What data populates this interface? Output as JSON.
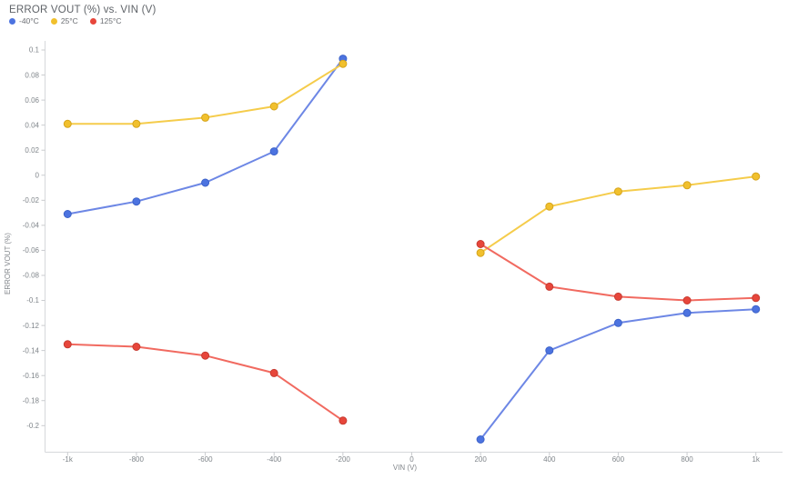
{
  "header": {
    "title": "ERROR VOUT (%) vs. VIN (V)"
  },
  "legend": {
    "position": "top-left",
    "items": [
      {
        "label": "-40°C",
        "color": "#4C73E0"
      },
      {
        "label": "25°C",
        "color": "#F1C02D"
      },
      {
        "label": "125°C",
        "color": "#E7463B"
      }
    ]
  },
  "chart_data": {
    "type": "line",
    "title": "ERROR VOUT (%) vs. VIN (V)",
    "xlabel": "VIN (V)",
    "ylabel": "ERROR VOUT (%)",
    "grid": false,
    "legend_position": "top-left",
    "x_domain": [
      -1000,
      1000
    ],
    "y_domain": [
      0.1,
      -0.2
    ],
    "xlim": [
      -1070,
      1080
    ],
    "ylim": [
      -0.222,
      0.103
    ],
    "x_ticks": {
      "values": [
        -1000,
        -800,
        -600,
        -400,
        -200,
        0,
        200,
        400,
        600,
        800,
        1000
      ],
      "labels": [
        "-1k",
        "-800",
        "-600",
        "-400",
        "-200",
        "0",
        "200",
        "400",
        "600",
        "800",
        "1k"
      ]
    },
    "y_ticks": {
      "values": [
        0.1,
        0.08,
        0.06,
        0.04,
        0.02,
        0,
        -0.02,
        -0.04,
        -0.06,
        -0.08,
        -0.1,
        -0.12,
        -0.14,
        -0.16,
        -0.18,
        -0.2
      ],
      "labels": [
        "0.1",
        "0.08",
        "0.06",
        "0.04",
        "0.02",
        "0",
        "-0.02",
        "-0.04",
        "-0.06",
        "-0.08",
        "-0.1",
        "-0.12",
        "-0.14",
        "-0.16",
        "-0.18",
        "-0.2"
      ]
    },
    "series_break_index": 5,
    "series": [
      {
        "name": "-40°C",
        "line_color": "#6D87E5",
        "point_color": "#4C73E0",
        "point_stroke": "#3D63C9",
        "x": [
          -1000,
          -800,
          -600,
          -400,
          -200,
          200,
          400,
          600,
          800,
          1000
        ],
        "y": [
          -0.031,
          -0.021,
          -0.006,
          0.019,
          0.093,
          -0.211,
          -0.14,
          -0.118,
          -0.11,
          -0.107
        ]
      },
      {
        "name": "25°C",
        "line_color": "#F5CC4B",
        "point_color": "#F1C02D",
        "point_stroke": "#D6A51C",
        "x": [
          -1000,
          -800,
          -600,
          -400,
          -200,
          200,
          400,
          600,
          800,
          1000
        ],
        "y": [
          0.041,
          0.041,
          0.046,
          0.055,
          0.089,
          -0.062,
          -0.025,
          -0.013,
          -0.008,
          -0.001
        ]
      },
      {
        "name": "125°C",
        "line_color": "#F16A60",
        "point_color": "#E7463B",
        "point_stroke": "#C73B31",
        "x": [
          -1000,
          -800,
          -600,
          -400,
          -200,
          200,
          400,
          600,
          800,
          1000
        ],
        "y": [
          -0.135,
          -0.137,
          -0.144,
          -0.158,
          -0.196,
          -0.055,
          -0.089,
          -0.097,
          -0.1,
          -0.098
        ]
      }
    ],
    "colors": {
      "axis_line": "#d6d8db",
      "tick_line": "#c9cbce",
      "tick_text": "#80868b",
      "title_text": "#5f6368",
      "background": "#ffffff"
    }
  }
}
